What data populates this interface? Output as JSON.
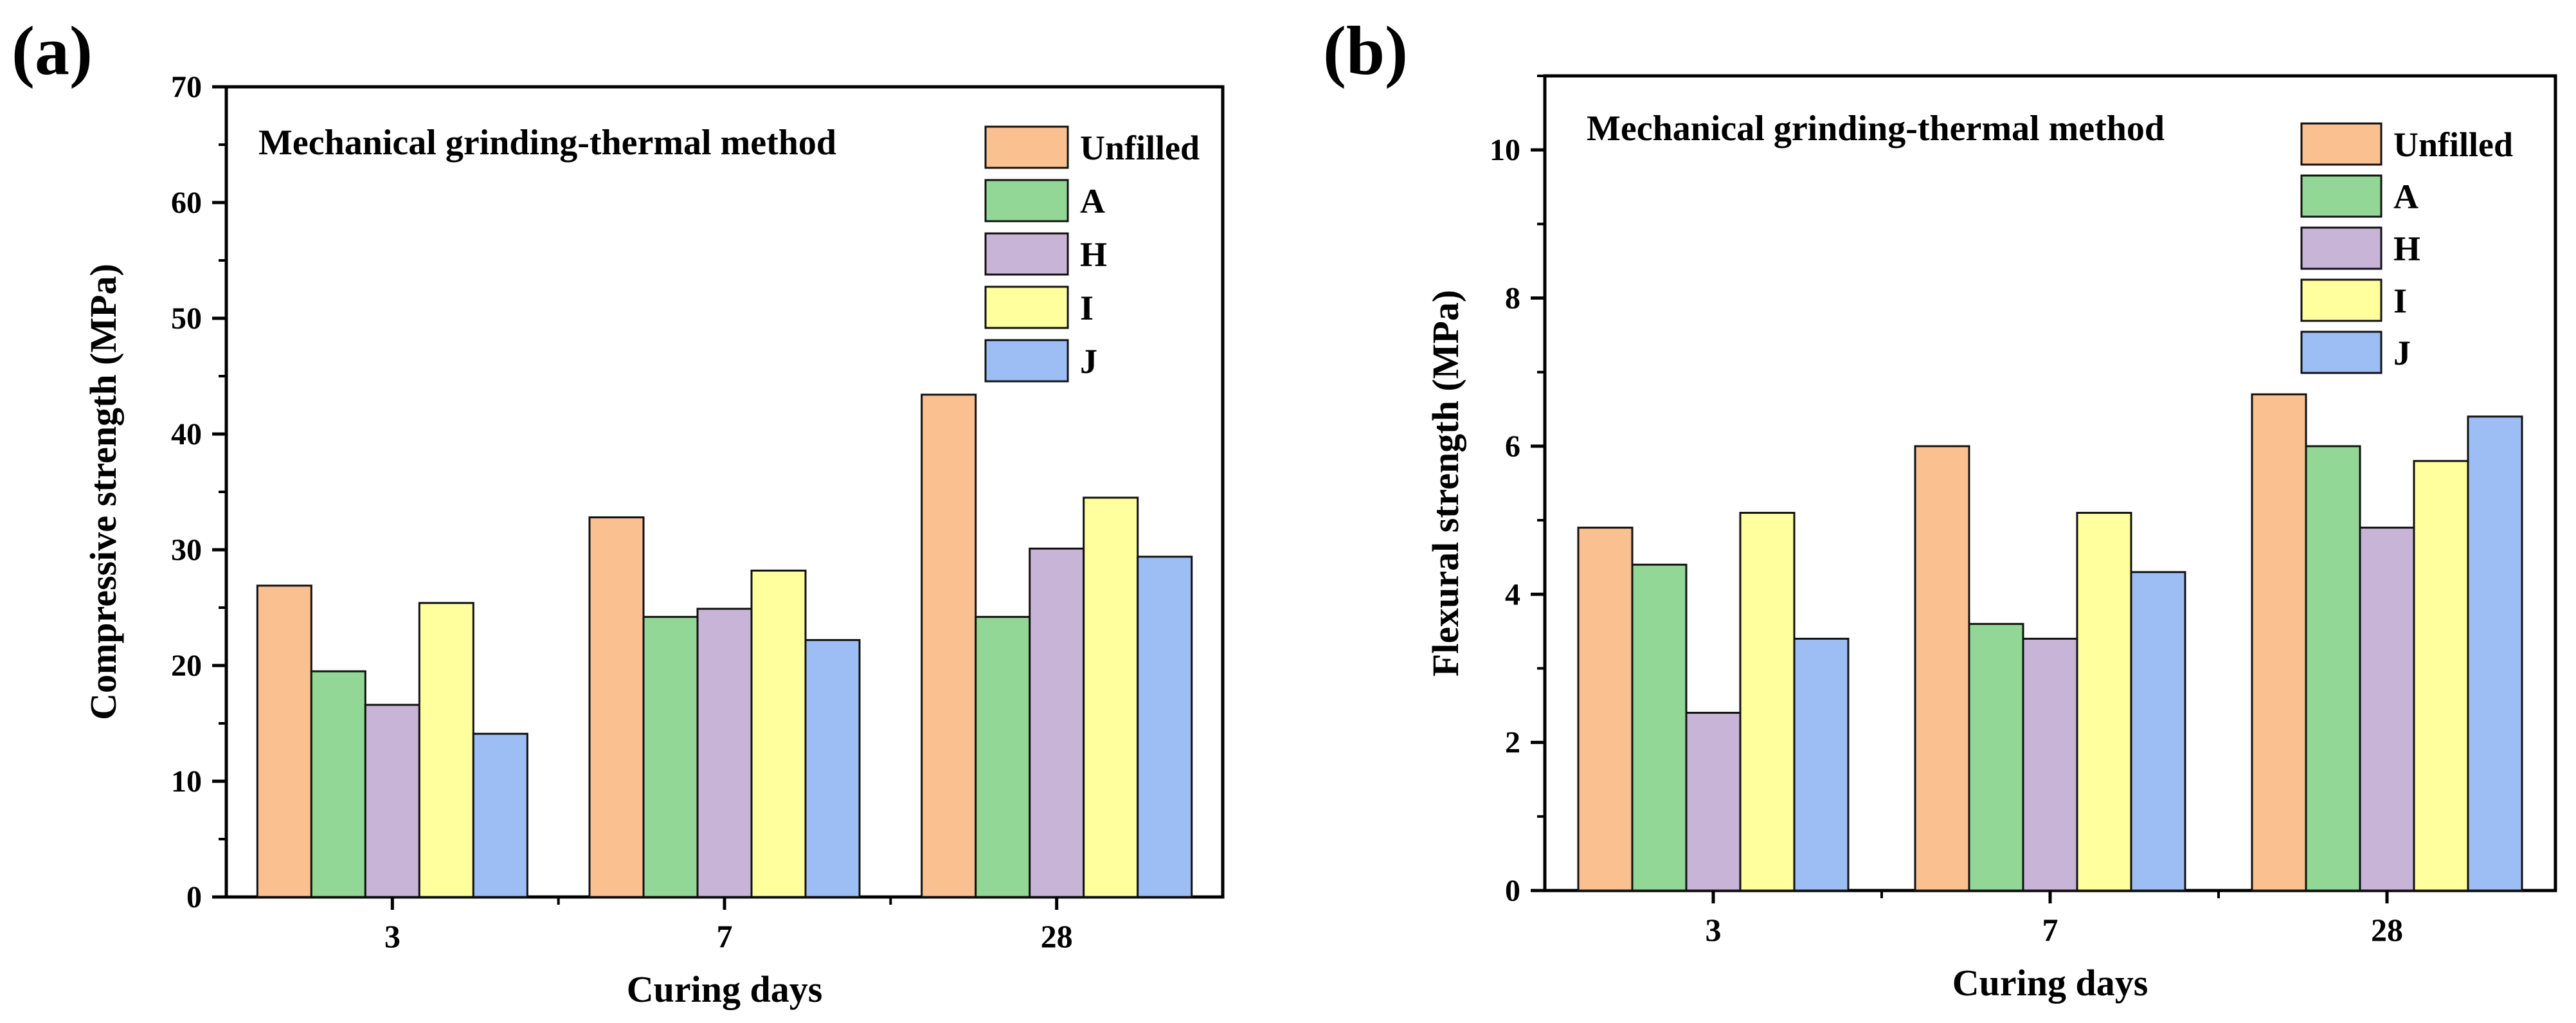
{
  "chart_data": [
    {
      "panel_label": "(a)",
      "type": "bar",
      "title": "Mechanical grinding-thermal method",
      "xlabel": "Curing days",
      "ylabel": "Compressive strength (MPa)",
      "categories": [
        "3",
        "7",
        "28"
      ],
      "ylim": [
        0,
        70
      ],
      "yticks": [
        "0",
        "10",
        "20",
        "30",
        "40",
        "50",
        "60",
        "70"
      ],
      "grid": false,
      "legend_position": "top-right",
      "series": [
        {
          "name": "Unfilled",
          "color": "#FAC090",
          "values": [
            26.9,
            32.8,
            43.4
          ]
        },
        {
          "name": "A",
          "color": "#93D796",
          "values": [
            19.5,
            24.2,
            24.2
          ]
        },
        {
          "name": "H",
          "color": "#C8B4D6",
          "values": [
            16.6,
            24.9,
            30.1
          ]
        },
        {
          "name": "I",
          "color": "#FFFF9E",
          "values": [
            25.4,
            28.2,
            34.5
          ]
        },
        {
          "name": "J",
          "color": "#9CBEF4",
          "values": [
            14.1,
            22.2,
            29.4
          ]
        }
      ]
    },
    {
      "panel_label": "(b)",
      "type": "bar",
      "title": "Mechanical grinding-thermal method",
      "xlabel": "Curing days",
      "ylabel": "Flexural strength (MPa)",
      "categories": [
        "3",
        "7",
        "28"
      ],
      "ylim": [
        0,
        11
      ],
      "yticks": [
        "0",
        "2",
        "4",
        "6",
        "8",
        "10"
      ],
      "grid": false,
      "legend_position": "top-right",
      "series": [
        {
          "name": "Unfilled",
          "color": "#FAC090",
          "values": [
            4.9,
            6.0,
            6.7
          ]
        },
        {
          "name": "A",
          "color": "#93D796",
          "values": [
            4.4,
            3.6,
            6.0
          ]
        },
        {
          "name": "H",
          "color": "#C8B4D6",
          "values": [
            2.4,
            3.4,
            4.9
          ]
        },
        {
          "name": "I",
          "color": "#FFFF9E",
          "values": [
            5.1,
            5.1,
            5.8
          ]
        },
        {
          "name": "J",
          "color": "#9CBEF4",
          "values": [
            3.4,
            4.3,
            6.4
          ]
        }
      ]
    }
  ]
}
